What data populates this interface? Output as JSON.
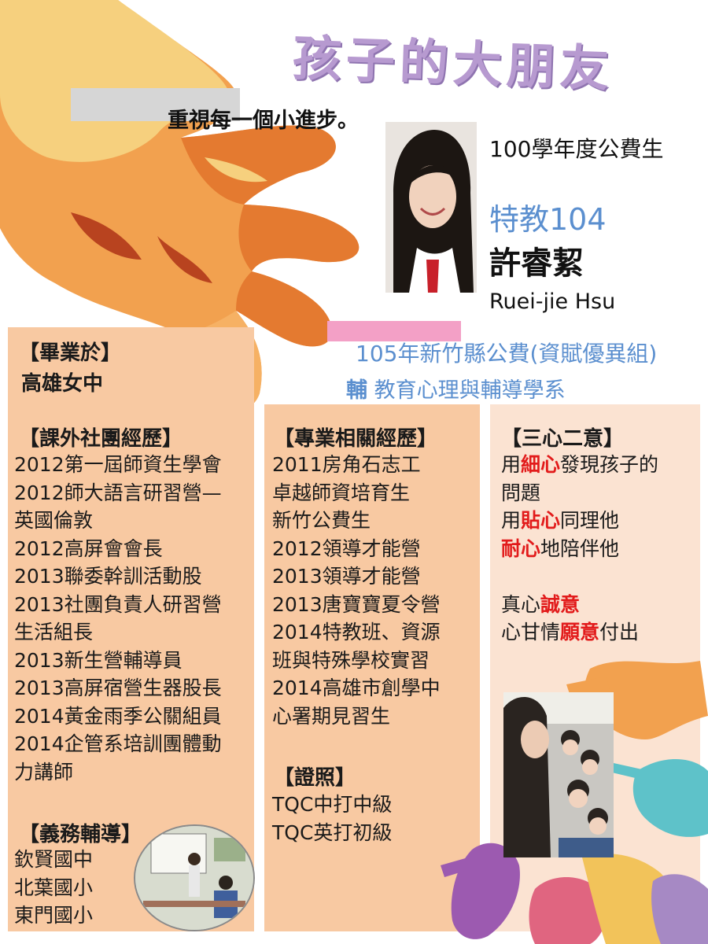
{
  "title": "孩子的大朋友",
  "motto": "重視每一個小進步。",
  "profile": {
    "scholarship": "100學年度公費生",
    "department": "特教104",
    "name": "許睿絜",
    "english_name": "Ruei-jie Hsu"
  },
  "award": {
    "line1": "105年新竹縣公費(資賦優異組)",
    "line2_prefix": "輔",
    "line2_rest": " 教育心理與輔導學系"
  },
  "graduated": {
    "heading": "【畢業於】",
    "school": "高雄女中"
  },
  "clubs": {
    "heading": "【課外社團經歷】",
    "items": [
      "2012第一屆師資生學會",
      "2012師大語言研習營—",
      "英國倫敦",
      "2012高屏會會長",
      "2013聯委幹訓活動股",
      "2013社團負責人研習營",
      "生活組長",
      "2013新生營輔導員",
      "2013高屏宿營生器股長",
      "2014黃金雨季公關組員",
      "2014企管系培訓團體動",
      "力講師"
    ]
  },
  "tutoring": {
    "heading": "【義務輔導】",
    "schools": [
      "欽賢國中",
      "北葉國小",
      "東門國小"
    ]
  },
  "professional": {
    "heading": "【專業相關經歷】",
    "items": [
      "2011房角石志工",
      "卓越師資培育生",
      "新竹公費生",
      "2012領導才能營",
      "2013領導才能營",
      "2013唐寶寶夏令營",
      "2014特教班、資源",
      "班與特殊學校實習",
      "2014高雄市創學中",
      "心署期見習生"
    ]
  },
  "license": {
    "heading": "【證照】",
    "items": [
      "TQC中打中級",
      "TQC英打初級"
    ]
  },
  "three_hearts": {
    "heading": "【三心二意】",
    "l1a": "用",
    "l1b": "細心",
    "l1c": "發現孩子的",
    "l2": "問題",
    "l3a": "用",
    "l3b": "貼心",
    "l3c": "同理他",
    "l4a": "耐心",
    "l4b": "地陪伴他",
    "l5a": "真心",
    "l5b": "誠意",
    "l6a": "心甘情",
    "l6b": "願意",
    "l6c": "付出"
  },
  "colors": {
    "title": "#b79ad0",
    "accent_blue": "#5b8fcf",
    "panel_orange": "#f8c9a2",
    "panel_light": "#fbe3d2",
    "emphasis_red": "#e21b1b"
  }
}
